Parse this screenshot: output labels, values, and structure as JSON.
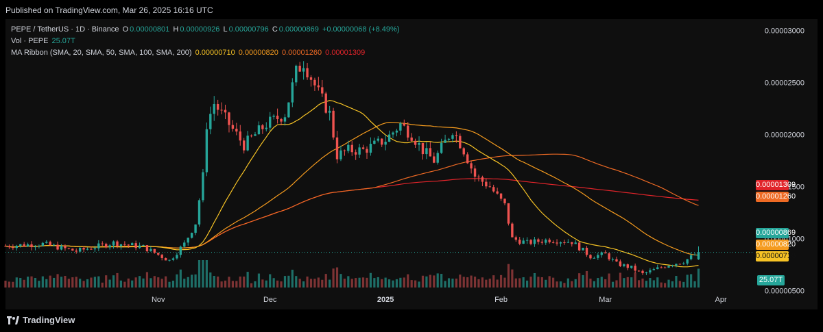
{
  "header": {
    "published": "Published on TradingView.com, Mar 26, 2025 16:16 UTC"
  },
  "legend": {
    "symbol": "PEPE / TetherUS · 1D · Binance",
    "o_label": "O",
    "o_value": "0.00000801",
    "h_label": "H",
    "h_value": "0.00000926",
    "l_label": "L",
    "l_value": "0.00000796",
    "c_label": "C",
    "c_value": "0.00000869",
    "change": "+0.00000068 (+8.49%)",
    "vol_label": "Vol · PEPE",
    "vol_value": "25.07T",
    "ma_label": "MA Ribbon (SMA, 20, SMA, 50, SMA, 100, SMA, 200)",
    "ma20": "0.00000710",
    "ma50": "0.00000820",
    "ma100": "0.00001260",
    "ma200": "0.00001309"
  },
  "price_tags": {
    "ma200": "0.00001309",
    "ma100": "0.00001260",
    "last": "0.00000869",
    "ma50": "0.00000820",
    "ma20": "0.00000710",
    "volume": "25.07T"
  },
  "footer": {
    "brand": "TradingView"
  },
  "colors": {
    "up": "#26a69a",
    "down": "#ef5350",
    "ma20": "#f7c325",
    "ma50": "#f59b1e",
    "ma100": "#ee6a24",
    "ma200": "#e1242a",
    "last_line": "#26a69a"
  },
  "chart_data": {
    "type": "candlestick",
    "symbol": "PEPE / TetherUS",
    "interval": "1D",
    "exchange": "Binance",
    "x_labels": [
      "Nov",
      "Dec",
      "2025",
      "Feb",
      "Mar",
      "Apr"
    ],
    "x_label_dates": [
      "2024-11-01",
      "2024-12-01",
      "2025-01-01",
      "2025-02-01",
      "2025-03-01",
      "2025-04-01"
    ],
    "y_ticks": [
      "0.00003000",
      "0.00002500",
      "0.00002000",
      "0.00001500",
      "0.00001000",
      "0.00000500"
    ],
    "y_tick_values": [
      3e-05,
      2.5e-05,
      2e-05,
      1.5e-05,
      1e-05,
      5e-06
    ],
    "ylim": [
      3.2e-06,
      3.11e-05
    ],
    "x_range": [
      "2024-09-21",
      "2025-04-10"
    ],
    "last_candle": {
      "date": "2025-03-26",
      "open": 8.01e-06,
      "high": 9.26e-06,
      "low": 7.96e-06,
      "close": 8.69e-06
    },
    "close_path": [
      [
        "2024-09-21",
        9.3e-06
      ],
      [
        "2024-10-01",
        9.5e-06
      ],
      [
        "2024-10-10",
        8.8e-06
      ],
      [
        "2024-10-20",
        9.6e-06
      ],
      [
        "2024-10-28",
        9.2e-06
      ],
      [
        "2024-11-04",
        7.9e-06
      ],
      [
        "2024-11-08",
        9.5e-06
      ],
      [
        "2024-11-11",
        1.15e-05
      ],
      [
        "2024-11-13",
        1.6e-05
      ],
      [
        "2024-11-14",
        2.1e-05
      ],
      [
        "2024-11-16",
        2.3e-05
      ],
      [
        "2024-11-20",
        2.1e-05
      ],
      [
        "2024-11-24",
        1.9e-05
      ],
      [
        "2024-11-30",
        2.1e-05
      ],
      [
        "2024-12-05",
        2.2e-05
      ],
      [
        "2024-12-08",
        2.6e-05
      ],
      [
        "2024-12-10",
        2.7e-05
      ],
      [
        "2024-12-14",
        2.4e-05
      ],
      [
        "2024-12-17",
        2.2e-05
      ],
      [
        "2024-12-19",
        1.8e-05
      ],
      [
        "2024-12-22",
        1.85e-05
      ],
      [
        "2024-12-26",
        1.85e-05
      ],
      [
        "2025-01-01",
        1.95e-05
      ],
      [
        "2025-01-05",
        2.1e-05
      ],
      [
        "2025-01-08",
        2e-05
      ],
      [
        "2025-01-11",
        1.85e-05
      ],
      [
        "2025-01-14",
        1.75e-05
      ],
      [
        "2025-01-19",
        2.05e-05
      ],
      [
        "2025-01-22",
        1.85e-05
      ],
      [
        "2025-01-25",
        1.6e-05
      ],
      [
        "2025-01-29",
        1.5e-05
      ],
      [
        "2025-02-02",
        1.32e-05
      ],
      [
        "2025-02-04",
        1e-05
      ],
      [
        "2025-02-08",
        9.6e-06
      ],
      [
        "2025-02-14",
        9.9e-06
      ],
      [
        "2025-02-20",
        9.7e-06
      ],
      [
        "2025-02-25",
        8.3e-06
      ],
      [
        "2025-03-01",
        8.5e-06
      ],
      [
        "2025-03-04",
        7.6e-06
      ],
      [
        "2025-03-08",
        7.2e-06
      ],
      [
        "2025-03-11",
        6.6e-06
      ],
      [
        "2025-03-14",
        7e-06
      ],
      [
        "2025-03-18",
        7.5e-06
      ],
      [
        "2025-03-22",
        7.8e-06
      ],
      [
        "2025-03-26",
        8.69e-06
      ]
    ],
    "series": [
      {
        "name": "MA 20",
        "last": 7.1e-06
      },
      {
        "name": "MA 50",
        "last": 8.2e-06
      },
      {
        "name": "MA 100",
        "last": 1.26e-05
      },
      {
        "name": "MA 200",
        "last": 1.309e-05
      }
    ],
    "volume_last": "25.07T",
    "grid": false
  }
}
